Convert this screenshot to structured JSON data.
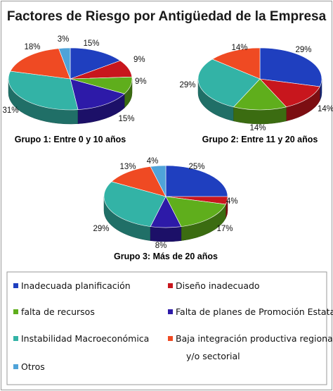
{
  "chart_data": {
    "type": "pie",
    "title": "Factores de Riesgo por Antigüedad de la Empresa",
    "categories": [
      "Inadecuada planificación",
      "Diseño inadecuado",
      "falta de recursos",
      "Falta de planes de Promoción Estatal",
      "Instabilidad Macroeconómica",
      "Baja integración productiva regional y/o sectorial",
      "Otros"
    ],
    "colors": [
      "#1f3fbf",
      "#c8161d",
      "#5fae1c",
      "#2d1aa8",
      "#33b3a6",
      "#ef4a23",
      "#4fa3d9"
    ],
    "series": [
      {
        "name": "Grupo 1: Entre 0 y 10 años",
        "values": [
          15,
          9,
          9,
          15,
          31,
          18,
          3
        ],
        "labels": [
          "15%",
          "9%",
          "9%",
          "15%",
          "31%",
          "18%",
          "3%"
        ]
      },
      {
        "name": "Grupo 2: Entre 11 y 20 años",
        "values": [
          29,
          14,
          14,
          0,
          29,
          14,
          0
        ],
        "labels": [
          "29%",
          "14%",
          "14%",
          "",
          "29%",
          "14%",
          ""
        ]
      },
      {
        "name": "Grupo 3: Más de 20 años",
        "values": [
          25,
          4,
          17,
          8,
          29,
          13,
          4
        ],
        "labels": [
          "25%",
          "4%",
          "17%",
          "8%",
          "29%",
          "13%",
          "4%"
        ]
      }
    ],
    "legend": {
      "placement": "bottom",
      "items": [
        "Inadecuada planificación",
        "Diseño inadecuado",
        "falta de recursos",
        "Falta de planes de Promoción Estatal",
        "Instabilidad Macroeconómica",
        "Baja integración productiva regional",
        "y/o sectorial",
        "Otros"
      ]
    }
  }
}
